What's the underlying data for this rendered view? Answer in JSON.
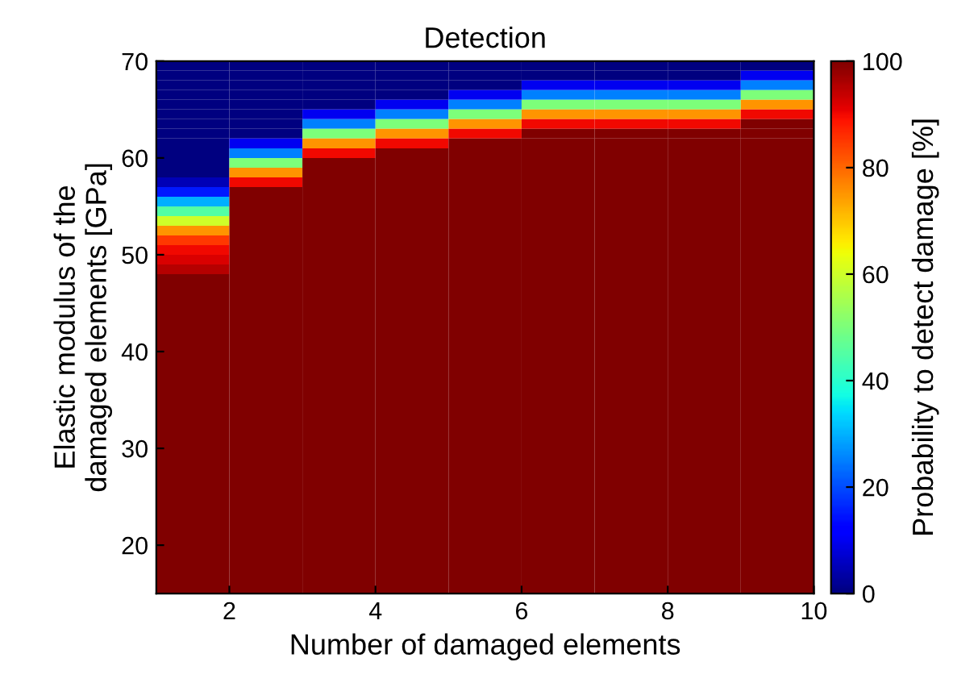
{
  "chart_data": {
    "type": "heatmap",
    "title": "Detection",
    "xlabel": "Number of damaged elements",
    "ylabel": "Elastic modulus of the\ndamaged elements [GPa]",
    "clabel": "Probability to detect damage [%]",
    "x": [
      1.5,
      2.5,
      3.5,
      4.5,
      5.5,
      6.5,
      7.5,
      8.5,
      9.5
    ],
    "y": [
      69.5,
      68.5,
      67.5,
      66.5,
      65.5,
      64.5,
      63.5,
      62.5,
      61.5,
      60.5,
      59.5,
      58.5,
      57.5,
      56.5,
      55.5,
      54.5,
      53.5,
      52.5,
      51.5,
      50.5,
      49.5,
      48.5,
      47.5,
      46.5,
      45.5,
      44.5,
      43.5,
      42.5,
      41.5,
      40.5,
      39.5,
      38.5,
      37.5,
      36.5,
      35.5,
      34.5,
      33.5,
      32.5,
      31.5,
      30.5,
      29.5,
      28.5,
      27.5,
      26.5,
      25.5,
      24.5,
      23.5,
      22.5,
      21.5,
      20.5,
      19.5,
      18.5,
      17.5,
      16.5,
      15.5
    ],
    "cells": [
      [
        0,
        0,
        0,
        0,
        0,
        0,
        0,
        0,
        0
      ],
      [
        0,
        0,
        0,
        0,
        0,
        0,
        0,
        0,
        10
      ],
      [
        0,
        0,
        0,
        0,
        0,
        10,
        10,
        10,
        25
      ],
      [
        0,
        0,
        0,
        0,
        10,
        25,
        25,
        25,
        50
      ],
      [
        0,
        0,
        0,
        10,
        25,
        50,
        50,
        50,
        75
      ],
      [
        0,
        0,
        10,
        25,
        50,
        75,
        75,
        75,
        90
      ],
      [
        0,
        0,
        25,
        50,
        75,
        90,
        90,
        90,
        100
      ],
      [
        0,
        0,
        50,
        75,
        90,
        100,
        100,
        100,
        100
      ],
      [
        0,
        10,
        75,
        90,
        100,
        100,
        100,
        100,
        100
      ],
      [
        0,
        25,
        90,
        100,
        100,
        100,
        100,
        100,
        100
      ],
      [
        0,
        50,
        100,
        100,
        100,
        100,
        100,
        100,
        100
      ],
      [
        0,
        75,
        100,
        100,
        100,
        100,
        100,
        100,
        100
      ],
      [
        5,
        90,
        100,
        100,
        100,
        100,
        100,
        100,
        100
      ],
      [
        15,
        100,
        100,
        100,
        100,
        100,
        100,
        100,
        100
      ],
      [
        30,
        100,
        100,
        100,
        100,
        100,
        100,
        100,
        100
      ],
      [
        45,
        100,
        100,
        100,
        100,
        100,
        100,
        100,
        100
      ],
      [
        60,
        100,
        100,
        100,
        100,
        100,
        100,
        100,
        100
      ],
      [
        75,
        100,
        100,
        100,
        100,
        100,
        100,
        100,
        100
      ],
      [
        85,
        100,
        100,
        100,
        100,
        100,
        100,
        100,
        100
      ],
      [
        90,
        100,
        100,
        100,
        100,
        100,
        100,
        100,
        100
      ],
      [
        92,
        100,
        100,
        100,
        100,
        100,
        100,
        100,
        100
      ],
      [
        95,
        100,
        100,
        100,
        100,
        100,
        100,
        100,
        100
      ],
      [
        100,
        100,
        100,
        100,
        100,
        100,
        100,
        100,
        100
      ],
      [
        100,
        100,
        100,
        100,
        100,
        100,
        100,
        100,
        100
      ],
      [
        100,
        100,
        100,
        100,
        100,
        100,
        100,
        100,
        100
      ],
      [
        100,
        100,
        100,
        100,
        100,
        100,
        100,
        100,
        100
      ],
      [
        100,
        100,
        100,
        100,
        100,
        100,
        100,
        100,
        100
      ],
      [
        100,
        100,
        100,
        100,
        100,
        100,
        100,
        100,
        100
      ],
      [
        100,
        100,
        100,
        100,
        100,
        100,
        100,
        100,
        100
      ],
      [
        100,
        100,
        100,
        100,
        100,
        100,
        100,
        100,
        100
      ],
      [
        100,
        100,
        100,
        100,
        100,
        100,
        100,
        100,
        100
      ],
      [
        100,
        100,
        100,
        100,
        100,
        100,
        100,
        100,
        100
      ],
      [
        100,
        100,
        100,
        100,
        100,
        100,
        100,
        100,
        100
      ],
      [
        100,
        100,
        100,
        100,
        100,
        100,
        100,
        100,
        100
      ],
      [
        100,
        100,
        100,
        100,
        100,
        100,
        100,
        100,
        100
      ],
      [
        100,
        100,
        100,
        100,
        100,
        100,
        100,
        100,
        100
      ],
      [
        100,
        100,
        100,
        100,
        100,
        100,
        100,
        100,
        100
      ],
      [
        100,
        100,
        100,
        100,
        100,
        100,
        100,
        100,
        100
      ],
      [
        100,
        100,
        100,
        100,
        100,
        100,
        100,
        100,
        100
      ],
      [
        100,
        100,
        100,
        100,
        100,
        100,
        100,
        100,
        100
      ],
      [
        100,
        100,
        100,
        100,
        100,
        100,
        100,
        100,
        100
      ],
      [
        100,
        100,
        100,
        100,
        100,
        100,
        100,
        100,
        100
      ],
      [
        100,
        100,
        100,
        100,
        100,
        100,
        100,
        100,
        100
      ],
      [
        100,
        100,
        100,
        100,
        100,
        100,
        100,
        100,
        100
      ],
      [
        100,
        100,
        100,
        100,
        100,
        100,
        100,
        100,
        100
      ],
      [
        100,
        100,
        100,
        100,
        100,
        100,
        100,
        100,
        100
      ],
      [
        100,
        100,
        100,
        100,
        100,
        100,
        100,
        100,
        100
      ],
      [
        100,
        100,
        100,
        100,
        100,
        100,
        100,
        100,
        100
      ],
      [
        100,
        100,
        100,
        100,
        100,
        100,
        100,
        100,
        100
      ],
      [
        100,
        100,
        100,
        100,
        100,
        100,
        100,
        100,
        100
      ],
      [
        100,
        100,
        100,
        100,
        100,
        100,
        100,
        100,
        100
      ],
      [
        100,
        100,
        100,
        100,
        100,
        100,
        100,
        100,
        100
      ],
      [
        100,
        100,
        100,
        100,
        100,
        100,
        100,
        100,
        100
      ],
      [
        100,
        100,
        100,
        100,
        100,
        100,
        100,
        100,
        100
      ],
      [
        100,
        100,
        100,
        100,
        100,
        100,
        100,
        100,
        100
      ]
    ],
    "xlim": [
      1,
      10
    ],
    "ylim": [
      15,
      70
    ],
    "xticks": [
      2,
      4,
      6,
      8,
      10
    ],
    "yticks": [
      20,
      30,
      40,
      50,
      60,
      70
    ],
    "clim": [
      0,
      100
    ],
    "cticks": [
      0,
      20,
      40,
      60,
      80,
      100
    ]
  }
}
